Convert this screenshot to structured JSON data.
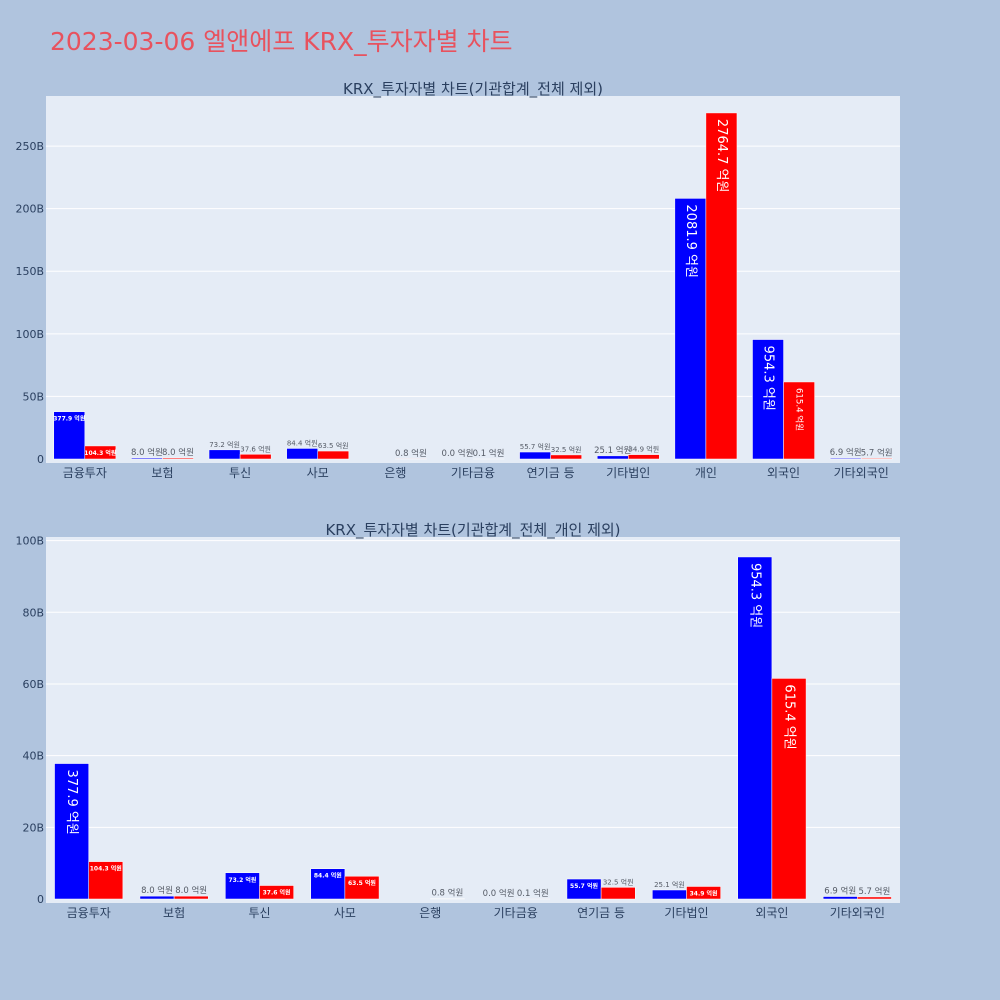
{
  "page": {
    "title": "2023-03-06 엘앤에프 KRX_투자자별 차트"
  },
  "colors": {
    "background": "#b0c4de",
    "plot_background": "#e5ecf6",
    "title": "#e8525e",
    "series_buy": "#0000ff",
    "series_sell": "#ff0000"
  },
  "chart_data": [
    {
      "type": "bar",
      "title": "KRX_투자자별 차트(기관합계_전체 제외)",
      "xlabel": "",
      "ylabel": "",
      "ylim": [
        0,
        290
      ],
      "yticks": [
        0,
        50,
        100,
        150,
        200,
        250
      ],
      "ytick_labels": [
        "0",
        "50B",
        "100B",
        "150B",
        "200B",
        "250B"
      ],
      "grid": true,
      "categories": [
        "금융투자",
        "보험",
        "투신",
        "사모",
        "은행",
        "기타금융",
        "연기금 등",
        "기타법인",
        "개인",
        "외국인",
        "기타외국인"
      ],
      "series": [
        {
          "color": "#0000ff",
          "values": [
            37.79,
            0.8,
            7.32,
            8.44,
            0,
            0,
            5.57,
            2.51,
            208.19,
            95.43,
            0.69
          ],
          "labels": [
            "377.9 억원",
            "8.0 억원",
            "73.2 억원",
            "84.4 억원",
            "",
            "0.0 억원",
            "55.7 억원",
            "25.1 억원",
            "2081.9 억원",
            "954.3 억원",
            "6.9 억원"
          ]
        },
        {
          "color": "#ff0000",
          "values": [
            10.43,
            0.8,
            3.76,
            6.35,
            0.08,
            0.01,
            3.25,
            3.49,
            276.47,
            61.54,
            0.57
          ],
          "labels": [
            "104.3 억원",
            "8.0 억원",
            "37.6 억원",
            "63.5 억원",
            "0.8 억원",
            "0.1 억원",
            "32.5 억원",
            "34.9 억원",
            "2764.7 억원",
            "615.4 억원",
            "5.7 억원"
          ]
        }
      ]
    },
    {
      "type": "bar",
      "title": "KRX_투자자별 차트(기관합계_전체_개인 제외)",
      "xlabel": "",
      "ylabel": "",
      "ylim": [
        0,
        101
      ],
      "yticks": [
        0,
        20,
        40,
        60,
        80,
        100
      ],
      "ytick_labels": [
        "0",
        "20B",
        "40B",
        "60B",
        "80B",
        "100B"
      ],
      "grid": true,
      "categories": [
        "금융투자",
        "보험",
        "투신",
        "사모",
        "은행",
        "기타금융",
        "연기금 등",
        "기타법인",
        "외국인",
        "기타외국인"
      ],
      "series": [
        {
          "color": "#0000ff",
          "values": [
            37.79,
            0.8,
            7.32,
            8.44,
            0,
            0,
            5.57,
            2.51,
            95.43,
            0.69
          ],
          "labels": [
            "377.9 억원",
            "8.0 억원",
            "73.2 억원",
            "84.4 억원",
            "",
            "0.0 억원",
            "55.7 억원",
            "25.1 억원",
            "954.3 억원",
            "6.9 억원"
          ]
        },
        {
          "color": "#ff0000",
          "values": [
            10.43,
            0.8,
            3.76,
            6.35,
            0.08,
            0.01,
            3.25,
            3.49,
            61.54,
            0.57
          ],
          "labels": [
            "104.3 억원",
            "8.0 억원",
            "37.6 억원",
            "63.5 억원",
            "0.8 억원",
            "0.1 억원",
            "32.5 억원",
            "34.9 억원",
            "615.4 억원",
            "5.7 억원"
          ]
        }
      ]
    }
  ]
}
